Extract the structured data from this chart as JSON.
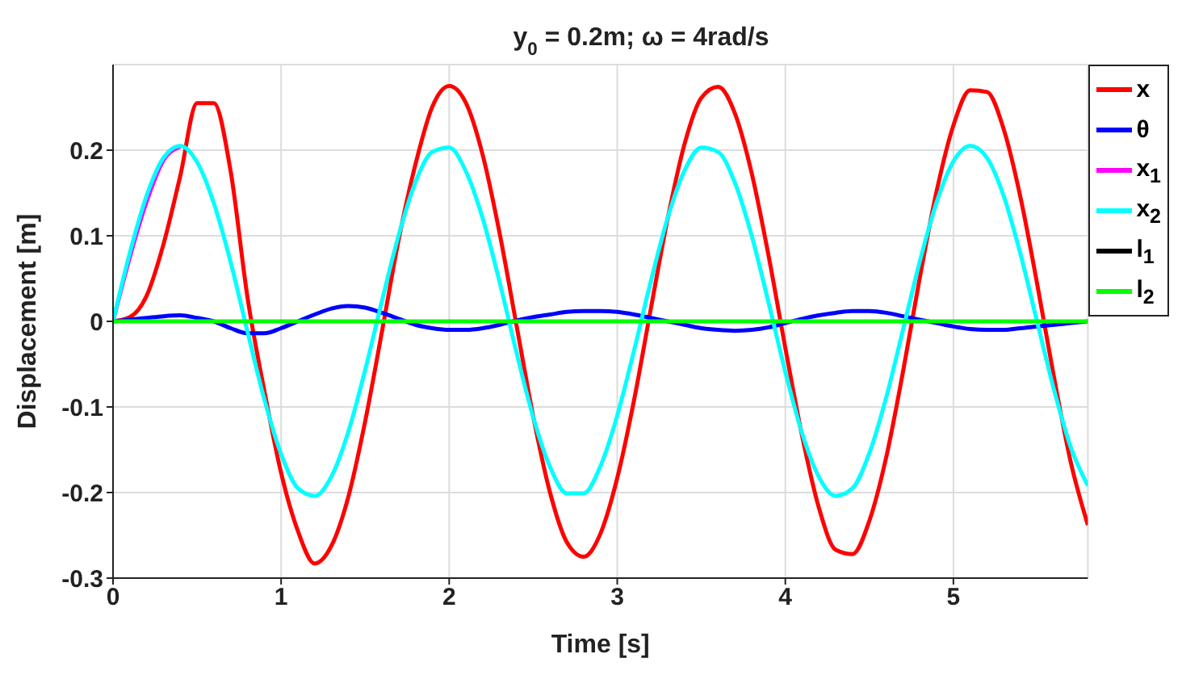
{
  "chart_data": {
    "type": "line",
    "title": "y$_{0}$ = 0.2m; ω = 4rad/s",
    "xlabel": "Time [s]",
    "ylabel": "Displacement [m]",
    "x": [
      0,
      0.1,
      0.2,
      0.3,
      0.4,
      0.5,
      0.6,
      0.7,
      0.8,
      0.9,
      1.0,
      1.1,
      1.2,
      1.3,
      1.4,
      1.5,
      1.6,
      1.7,
      1.8,
      1.9,
      2.0,
      2.1,
      2.2,
      2.3,
      2.4,
      2.5,
      2.6,
      2.7,
      2.8,
      2.9,
      3.0,
      3.1,
      3.2,
      3.3,
      3.4,
      3.5,
      3.6,
      3.7,
      3.8,
      3.9,
      4.0,
      4.1,
      4.2,
      4.3,
      4.4,
      4.5,
      4.6,
      4.7,
      4.8,
      4.9,
      5.0,
      5.1,
      5.2,
      5.3,
      5.4,
      5.5,
      5.6,
      5.7,
      5.8
    ],
    "series": [
      {
        "name": "x",
        "color": "#ff0000",
        "values": [
          0,
          0.005,
          0.03,
          0.09,
          0.17,
          0.255,
          0.255,
          0.175,
          0.028,
          -0.081,
          -0.177,
          -0.245,
          -0.283,
          -0.262,
          -0.205,
          -0.117,
          -0.012,
          0.096,
          0.184,
          0.251,
          0.275,
          0.255,
          0.194,
          0.103,
          -0.004,
          -0.111,
          -0.2,
          -0.258,
          -0.275,
          -0.248,
          -0.183,
          -0.092,
          0.015,
          0.12,
          0.207,
          0.261,
          0.274,
          0.243,
          0.173,
          0.077,
          -0.031,
          -0.134,
          -0.218,
          -0.267,
          -0.272,
          -0.233,
          -0.159,
          -0.059,
          0.051,
          0.152,
          0.229,
          0.27,
          0.268,
          0.224,
          0.144,
          0.042,
          -0.067,
          -0.166,
          -0.238
        ]
      },
      {
        "name": "θ",
        "color": "#0000ff",
        "values": [
          0,
          0.002,
          0.004,
          0.006,
          0.007,
          0.004,
          0,
          -0.008,
          -0.014,
          -0.014,
          -0.008,
          0,
          0.008,
          0.015,
          0.018,
          0.016,
          0.01,
          0.003,
          -0.004,
          -0.008,
          -0.01,
          -0.01,
          -0.008,
          -0.004,
          0.001,
          0.005,
          0.008,
          0.011,
          0.012,
          0.012,
          0.011,
          0.008,
          0.004,
          0,
          -0.004,
          -0.008,
          -0.01,
          -0.011,
          -0.01,
          -0.007,
          -0.002,
          0.003,
          0.007,
          0.01,
          0.012,
          0.012,
          0.01,
          0.006,
          0.002,
          -0.002,
          -0.006,
          -0.009,
          -0.01,
          -0.01,
          -0.008,
          -0.006,
          -0.004,
          -0.002,
          0
        ]
      },
      {
        "name": "x$_{1}$",
        "color": "#ff00ff",
        "values": [
          0,
          0.075,
          0.14,
          0.188,
          0.204,
          null,
          null,
          null,
          null,
          null,
          null,
          null,
          null,
          null,
          null,
          null,
          null,
          null,
          null,
          null,
          null,
          null,
          null,
          null,
          null,
          null,
          null,
          null,
          null,
          null,
          null,
          null,
          null,
          null,
          null,
          null,
          null,
          null,
          null,
          null,
          null,
          null,
          null,
          null,
          null,
          null,
          null,
          null,
          null,
          null,
          null,
          null,
          null,
          null,
          null,
          null,
          null,
          null,
          null
        ]
      },
      {
        "name": "x$_{2}$",
        "color": "#00ffff",
        "values": [
          0,
          0.08,
          0.147,
          0.191,
          0.205,
          0.186,
          0.138,
          0.069,
          -0.012,
          -0.091,
          -0.155,
          -0.195,
          -0.204,
          -0.181,
          -0.129,
          -0.057,
          0.024,
          0.101,
          0.163,
          0.198,
          0.203,
          0.175,
          0.12,
          0.046,
          -0.036,
          -0.112,
          -0.17,
          -0.201,
          -0.201,
          -0.169,
          -0.11,
          -0.034,
          0.047,
          0.121,
          0.176,
          0.203,
          0.198,
          0.162,
          0.1,
          0.022,
          -0.059,
          -0.131,
          -0.182,
          -0.204,
          -0.195,
          -0.154,
          -0.089,
          -0.01,
          0.07,
          0.139,
          0.187,
          0.205,
          0.191,
          0.146,
          0.078,
          -0.002,
          -0.081,
          -0.148,
          -0.192
        ]
      },
      {
        "name": "l$_{1}$",
        "color": "#000000",
        "values": [
          null,
          null,
          null,
          null,
          null,
          null,
          null,
          null,
          null,
          null,
          null,
          null,
          null,
          null,
          null,
          null,
          null,
          null,
          null,
          null,
          null,
          null,
          null,
          null,
          null,
          null,
          null,
          null,
          null,
          null,
          null,
          null,
          null,
          null,
          null,
          null,
          null,
          null,
          null,
          null,
          null,
          null,
          null,
          null,
          null,
          null,
          null,
          null,
          null,
          null,
          null,
          null,
          null,
          null,
          null,
          null,
          null,
          null,
          null
        ]
      },
      {
        "name": "l$_{2}$",
        "color": "#00ff00",
        "values": [
          0,
          0,
          0,
          0,
          0,
          0,
          0,
          0,
          0,
          0,
          0,
          0,
          0,
          0,
          0,
          0,
          0,
          0,
          0,
          0,
          0,
          0,
          0,
          0,
          0,
          0,
          0,
          0,
          0,
          0,
          0,
          0,
          0,
          0,
          0,
          0,
          0,
          0,
          0,
          0,
          0,
          0,
          0,
          0,
          0,
          0,
          0,
          0,
          0,
          0,
          0,
          0,
          0,
          0,
          0,
          0,
          0,
          0,
          0
        ]
      }
    ],
    "xlim": [
      0,
      5.8
    ],
    "xticks": [
      0,
      1,
      2,
      3,
      4,
      5
    ],
    "ylim": [
      -0.3,
      0.3
    ],
    "yticks": [
      -0.3,
      -0.2,
      -0.1,
      0,
      0.1,
      0.2
    ],
    "grid": true,
    "legend": "top right",
    "marker": "none",
    "line_style": "solid"
  }
}
